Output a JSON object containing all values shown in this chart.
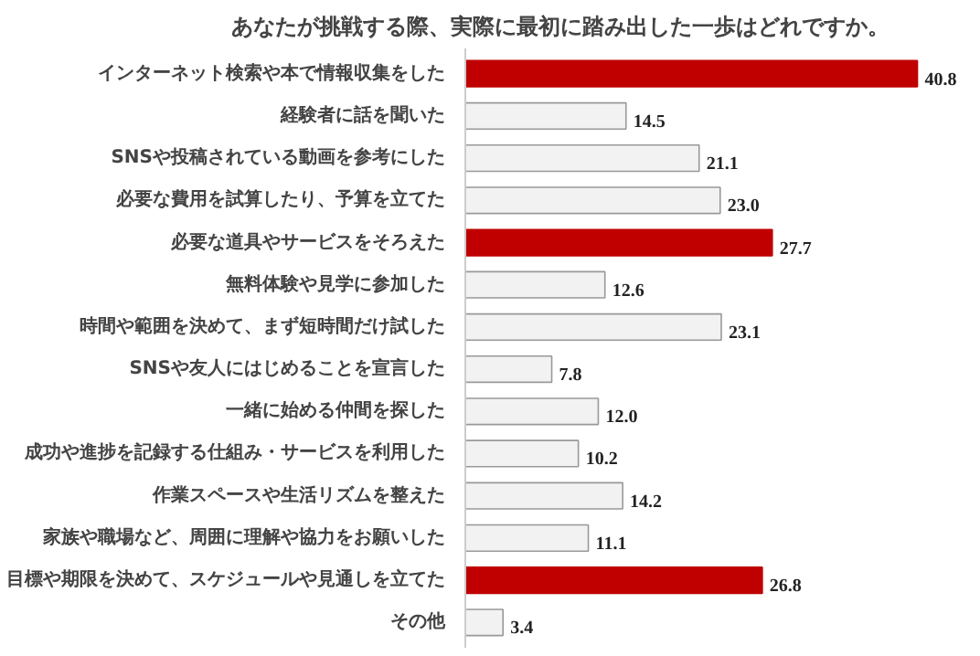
{
  "chart_data": {
    "type": "bar",
    "orientation": "horizontal",
    "title": "あなたが挑戦する際、実際に最初に踏み出した一歩はどれですか。",
    "categories": [
      "インターネット検索や本で情報収集をした",
      "経験者に話を聞いた",
      "SNSや投稿されている動画を参考にした",
      "必要な費用を試算したり、予算を立てた",
      "必要な道具やサービスをそろえた",
      "無料体験や見学に参加した",
      "時間や範囲を決めて、まず短時間だけ試した",
      "SNSや友人にはじめることを宣言した",
      "一緒に始める仲間を探した",
      "成功や進捗を記録する仕組み・サービスを利用した",
      "作業スペースや生活リズムを整えた",
      "家族や職場など、周囲に理解や協力をお願いした",
      "目標や期限を決めて、スケジュールや見通しを立てた",
      "その他"
    ],
    "values": [
      40.8,
      14.5,
      21.1,
      23.0,
      27.7,
      12.6,
      23.1,
      7.8,
      12.0,
      10.2,
      14.2,
      11.1,
      26.8,
      3.4
    ],
    "value_labels": [
      "40.8",
      "14.5",
      "21.1",
      "23.0",
      "27.7",
      "12.6",
      "23.1",
      "7.8",
      "12.0",
      "10.2",
      "14.2",
      "11.1",
      "26.8",
      "3.4"
    ],
    "colors": [
      "#c00000",
      "#f2f2f2",
      "#f2f2f2",
      "#f2f2f2",
      "#c00000",
      "#f2f2f2",
      "#f2f2f2",
      "#f2f2f2",
      "#f2f2f2",
      "#f2f2f2",
      "#f2f2f2",
      "#f2f2f2",
      "#c00000",
      "#f2f2f2"
    ],
    "tick_labels": "y",
    "grid": false
  }
}
